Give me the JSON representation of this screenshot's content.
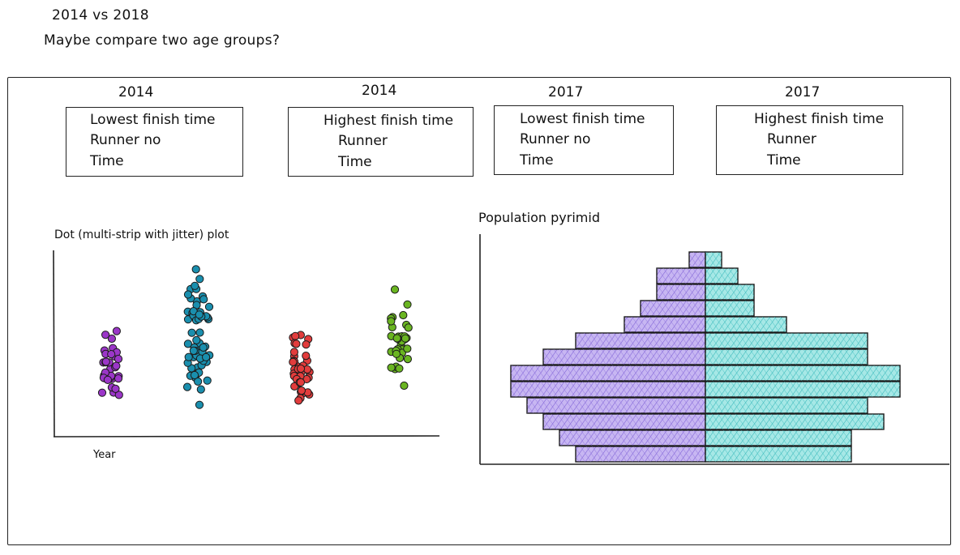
{
  "notes": {
    "line1": "2014 vs 2018",
    "line2": "Maybe compare two age groups?"
  },
  "kpi_cards": [
    {
      "year": "2014",
      "title": "Lowest finish time",
      "line2": "Runner no",
      "line3": "Time"
    },
    {
      "year": "2014",
      "title": "Highest finish time",
      "line2": "Runner",
      "line3": "Time"
    },
    {
      "year": "2017",
      "title": "Lowest finish time",
      "line2": "Runner no",
      "line3": "Time"
    },
    {
      "year": "2017",
      "title": "Highest finish time",
      "line2": "Runner",
      "line3": "Time"
    }
  ],
  "chart_data": [
    {
      "type": "scatter",
      "title": "Dot (multi-strip with jitter) plot",
      "xlabel": "Year",
      "ylabel": "",
      "grid": false,
      "series": [
        {
          "color": "#9b36c8",
          "count": 34,
          "y_range": [
            0.05,
            0.7
          ]
        },
        {
          "color": "#1a8fae",
          "count": 62,
          "y_range": [
            0.08,
            1.0
          ]
        },
        {
          "color": "#e23c3c",
          "count": 40,
          "y_range": [
            0.07,
            0.66
          ]
        },
        {
          "color": "#6ab521",
          "count": 36,
          "y_range": [
            0.15,
            0.87
          ]
        }
      ]
    },
    {
      "type": "bar",
      "title": "Population pyrimid",
      "orientation": "horizontal",
      "grid": false,
      "series": [
        {
          "color": "#b9a2ef",
          "values": [
            1,
            3,
            3,
            4,
            5,
            8,
            10,
            12,
            12,
            11,
            10,
            9,
            8
          ]
        },
        {
          "color": "#8fe0df",
          "values": [
            1,
            2,
            3,
            3,
            5,
            10,
            10,
            12,
            12,
            10,
            11,
            9,
            9
          ]
        }
      ]
    }
  ],
  "colors": {
    "ink": "#222222",
    "left_fill": "#b9a2ef",
    "right_fill": "#8fe0df"
  }
}
